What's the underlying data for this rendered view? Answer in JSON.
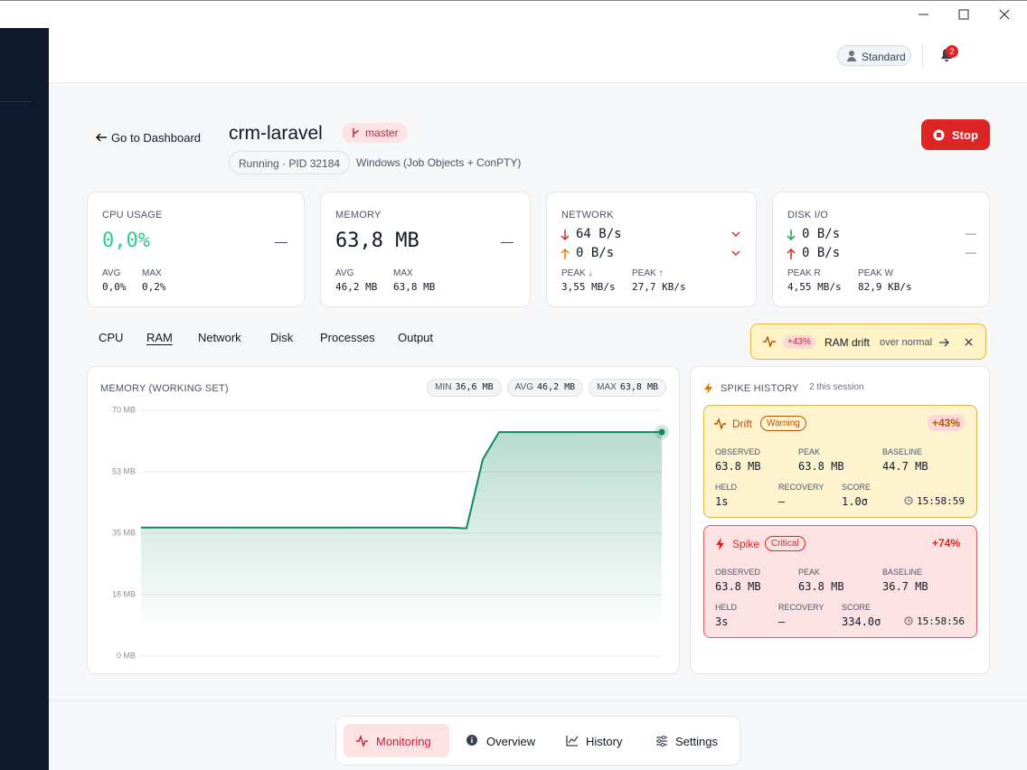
{
  "header": {
    "user": "Standard",
    "notifications": "2"
  },
  "page": {
    "back": "Go to Dashboard",
    "title": "crm-laravel",
    "branch": "master",
    "status": "Running · PID 32184",
    "platform": "Windows (Job Objects + ConPTY)",
    "stop": "Stop"
  },
  "stats": [
    {
      "label": "CPU USAGE",
      "value": "0,0%",
      "trend": "—",
      "sub": [
        {
          "label": "AVG",
          "value": "0,0%"
        },
        {
          "label": "MAX",
          "value": "0,2%"
        }
      ]
    },
    {
      "label": "MEMORY",
      "value": "63,8 MB",
      "trend": "—",
      "sub": [
        {
          "label": "AVG",
          "value": "46,2 MB"
        },
        {
          "label": "MAX",
          "value": "63,8 MB"
        }
      ]
    },
    {
      "label": "NETWORK",
      "rows": [
        {
          "value": "64 B/s"
        },
        {
          "value": "0 B/s"
        }
      ],
      "sub": [
        {
          "label": "PEAK ↓",
          "value": "3,55 MB/s"
        },
        {
          "label": "PEAK ↑",
          "value": "27,7 KB/s"
        }
      ]
    },
    {
      "label": "DISK I/O",
      "rows": [
        {
          "value": "0 B/s",
          "trend": "—"
        },
        {
          "value": "0 B/s",
          "trend": "—"
        }
      ],
      "sub": [
        {
          "label": "PEAK R",
          "value": "4,55 MB/s"
        },
        {
          "label": "PEAK W",
          "value": "82,9 KB/s"
        }
      ]
    }
  ],
  "tabs": [
    "CPU",
    "RAM",
    "Network",
    "Disk",
    "Processes",
    "Output"
  ],
  "alert": {
    "delta": "+43%",
    "title": "RAM drift",
    "note": "over normal"
  },
  "chart_data": {
    "type": "line",
    "title": "MEMORY (WORKING SET)",
    "color": "#13875f",
    "summary": [
      {
        "label": "MIN",
        "value": "36,6 MB"
      },
      {
        "label": "AVG",
        "value": "46,2 MB"
      },
      {
        "label": "MAX",
        "value": "63,8 MB"
      }
    ],
    "values": [
      36.6,
      36.6,
      36.6,
      36.6,
      36.6,
      36.6,
      36.6,
      36.6,
      36.6,
      36.6,
      36.6,
      36.6,
      36.6,
      36.6,
      36.6,
      36.6,
      36.6,
      36.6,
      36.6,
      36.6,
      36.4,
      56,
      63.8,
      63.8,
      63.8,
      63.8,
      63.8,
      63.8,
      63.8,
      63.8,
      63.8,
      63.8,
      63.8
    ],
    "ylim": [
      0,
      70
    ],
    "yticks": [
      {
        "value": 0,
        "label": "0 MB"
      },
      {
        "value": 17.5,
        "label": "18 MB"
      },
      {
        "value": 35,
        "label": "35 MB"
      },
      {
        "value": 52.5,
        "label": "53 MB"
      },
      {
        "value": 70,
        "label": "70 MB"
      }
    ],
    "grid": true
  },
  "spike_history": {
    "title": "SPIKE HISTORY",
    "count": "2 this session",
    "items": [
      {
        "kind": "Drift",
        "severity": "Warning",
        "delta": "+43%",
        "fields": [
          {
            "label": "OBSERVED",
            "value": "63.8 MB"
          },
          {
            "label": "PEAK",
            "value": "63.8 MB"
          },
          {
            "label": "BASELINE",
            "value": "44.7 MB"
          },
          {
            "label": "HELD",
            "value": "1s"
          },
          {
            "label": "RECOVERY",
            "value": "—"
          },
          {
            "label": "SCORE",
            "value": "1.0σ"
          }
        ],
        "time": "15:58:59"
      },
      {
        "kind": "Spike",
        "severity": "Critical",
        "delta": "+74%",
        "fields": [
          {
            "label": "OBSERVED",
            "value": "63.8 MB"
          },
          {
            "label": "PEAK",
            "value": "63.8 MB"
          },
          {
            "label": "BASELINE",
            "value": "36.7 MB"
          },
          {
            "label": "HELD",
            "value": "3s"
          },
          {
            "label": "RECOVERY",
            "value": "—"
          },
          {
            "label": "SCORE",
            "value": "334.0σ"
          }
        ],
        "time": "15:58:56"
      }
    ]
  },
  "nav": [
    "Monitoring",
    "Overview",
    "History",
    "Settings"
  ]
}
